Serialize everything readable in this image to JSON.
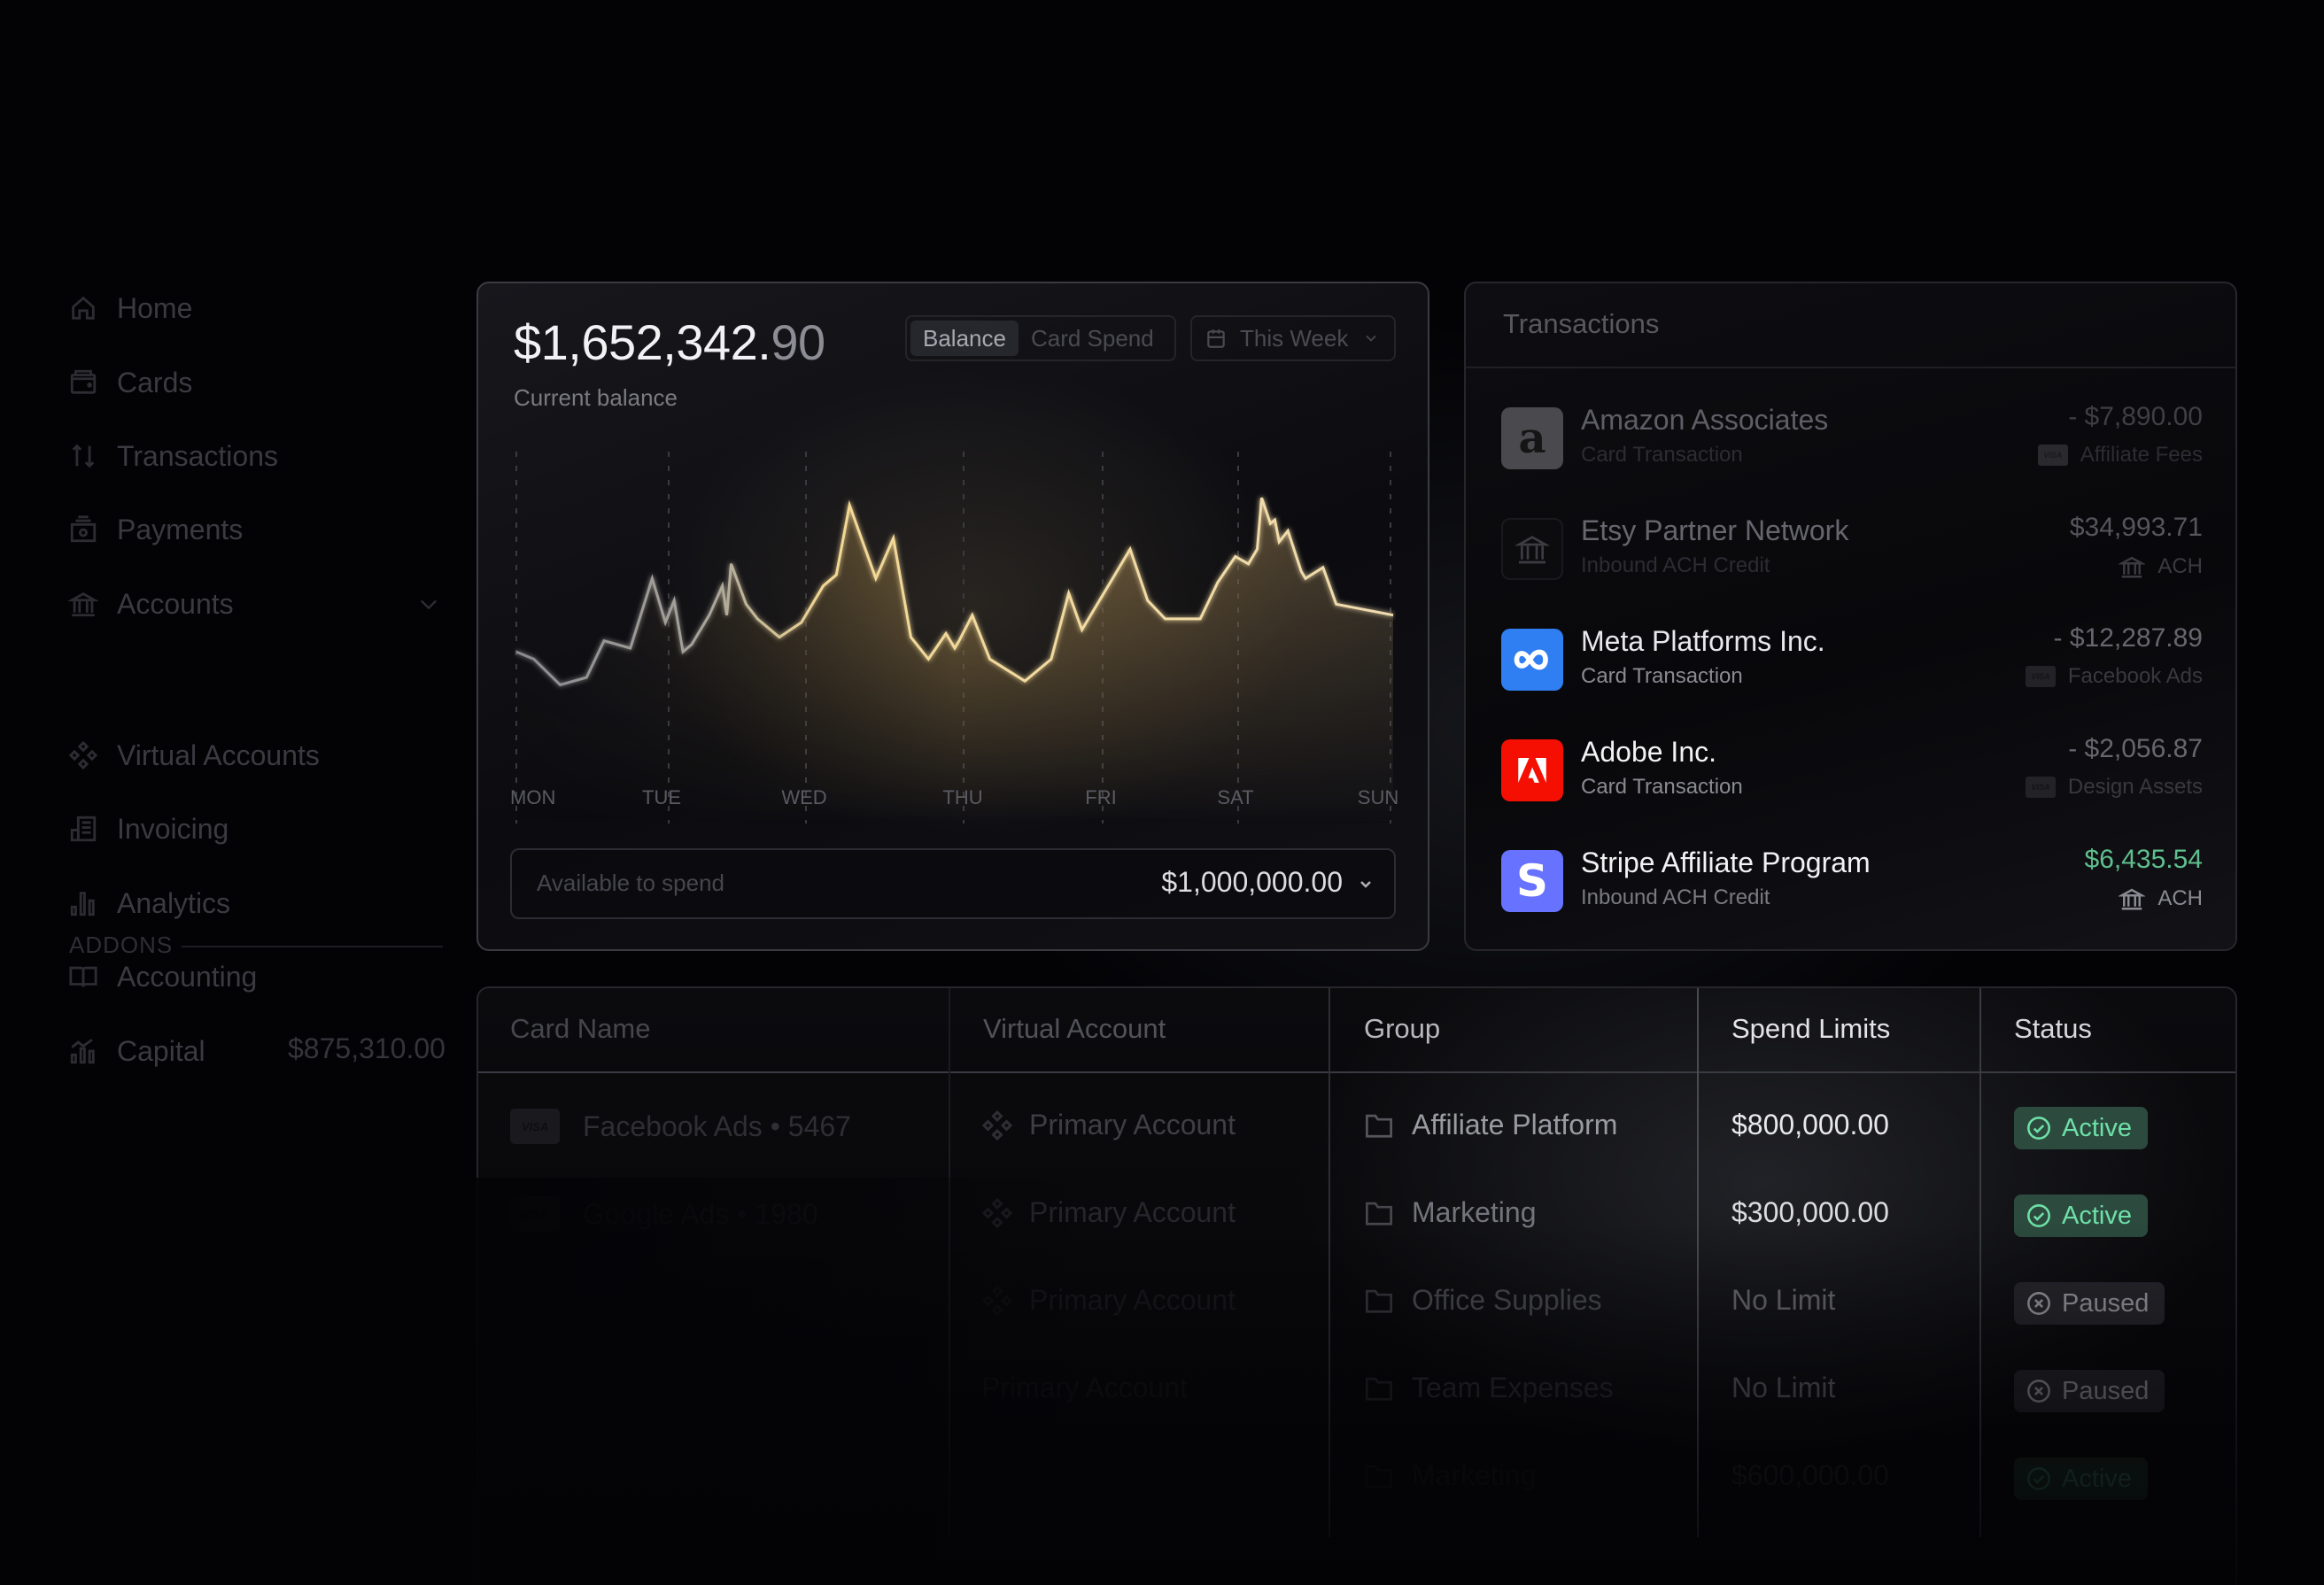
{
  "sidebar": {
    "items": [
      {
        "label": "Home",
        "icon": "home-icon"
      },
      {
        "label": "Cards",
        "icon": "wallet-icon"
      },
      {
        "label": "Transactions",
        "icon": "arrows-up-down-icon"
      },
      {
        "label": "Payments",
        "icon": "payments-icon"
      },
      {
        "label": "Accounts",
        "icon": "bank-icon",
        "has_chevron": true
      }
    ],
    "addons_label": "ADDONS",
    "addons": [
      {
        "label": "Virtual Accounts",
        "icon": "diamonds-icon"
      },
      {
        "label": "Invoicing",
        "icon": "invoice-icon"
      },
      {
        "label": "Analytics",
        "icon": "bar-chart-icon"
      },
      {
        "label": "Accounting",
        "icon": "book-icon"
      },
      {
        "label": "Capital",
        "icon": "capital-icon",
        "value": "$875,310.00"
      }
    ]
  },
  "balance": {
    "amount_main": "$1,652,342.",
    "amount_cents": "90",
    "label": "Current balance",
    "tabs": [
      "Balance",
      "Card Spend"
    ],
    "active_tab": "Balance",
    "range": "This Week",
    "available_label": "Available to spend",
    "available_value": "$1,000,000.00"
  },
  "chart_data": {
    "type": "area",
    "title": "Current balance",
    "categories": [
      "MON",
      "TUE",
      "WED",
      "THU",
      "FRI",
      "SAT",
      "SUN"
    ],
    "x": [
      0,
      0.02,
      0.05,
      0.08,
      0.1,
      0.13,
      0.155,
      0.17,
      0.18,
      0.19,
      0.2,
      0.22,
      0.235,
      0.24,
      0.245,
      0.262,
      0.275,
      0.3,
      0.325,
      0.35,
      0.365,
      0.38,
      0.41,
      0.43,
      0.45,
      0.47,
      0.49,
      0.5,
      0.505,
      0.52,
      0.54,
      0.58,
      0.61,
      0.63,
      0.645,
      0.7,
      0.72,
      0.74,
      0.78,
      0.8,
      0.82,
      0.835,
      0.845,
      0.85,
      0.86,
      0.865,
      0.87,
      0.88,
      0.895,
      0.9,
      0.92,
      0.935,
      1.0
    ],
    "values": [
      42,
      40,
      33,
      35,
      45,
      43,
      62,
      50,
      56,
      42,
      44,
      52,
      60,
      52,
      66,
      55,
      51,
      46,
      50,
      60,
      63,
      82,
      62,
      73,
      46,
      40,
      47,
      43,
      45,
      52,
      40,
      34,
      40,
      58,
      48,
      70,
      56,
      51,
      51,
      61,
      68,
      66,
      70,
      84,
      77,
      78,
      72,
      75,
      64,
      62,
      65,
      55,
      52
    ],
    "xlabel": "",
    "ylabel": "",
    "grid": "vertical dashed lines at each day",
    "ylim": [
      0,
      100
    ]
  },
  "transactions": {
    "title": "Transactions",
    "items": [
      {
        "name": "Amazon Associates",
        "type": "Card Transaction",
        "amount": "- $7,890.00",
        "tag": "Affiliate Fees",
        "tag_icon": "visa",
        "logo": "amazon",
        "amount_color": "#55555c"
      },
      {
        "name": "Etsy Partner Network",
        "type": "Inbound ACH Credit",
        "amount": "$34,993.71",
        "tag": "ACH",
        "tag_icon": "bank",
        "logo": "bank",
        "amount_color": "#5c5c63"
      },
      {
        "name": "Meta Platforms Inc.",
        "type": "Card Transaction",
        "amount": "- $12,287.89",
        "tag": "Facebook Ads",
        "tag_icon": "visa",
        "logo": "meta",
        "amount_color": "#7a7a82"
      },
      {
        "name": "Adobe Inc.",
        "type": "Card Transaction",
        "amount": "- $2,056.87",
        "tag": "Design Assets",
        "tag_icon": "visa",
        "logo": "adobe",
        "amount_color": "#7a7a82"
      },
      {
        "name": "Stripe Affiliate Program",
        "type": "Inbound ACH Credit",
        "amount": "$6,435.54",
        "tag": "ACH",
        "tag_icon": "bank",
        "logo": "stripe",
        "amount_color": "#5fbf8e"
      }
    ]
  },
  "cards_table": {
    "headers": [
      "Card Name",
      "Virtual Account",
      "Group",
      "Spend Limits",
      "Status"
    ],
    "rows": [
      {
        "card": "Facebook Ads • 5467",
        "account": "Primary Account",
        "group": "Affiliate Platform",
        "limit": "$800,000.00",
        "status": "Active"
      },
      {
        "card": "Google Ads • 1980",
        "account": "Primary Account",
        "group": "Marketing",
        "limit": "$300,000.00",
        "status": "Active"
      },
      {
        "card": "",
        "account": "Primary Account",
        "group": "Office Supplies",
        "limit": "No Limit",
        "status": "Paused"
      },
      {
        "card": "",
        "account": "Primary Account",
        "group": "Team Expenses",
        "limit": "No Limit",
        "status": "Paused"
      },
      {
        "card": "",
        "account": "",
        "group": "Marketing",
        "limit": "$600,000.00",
        "status": "Active"
      }
    ]
  },
  "colors": {
    "background": "#030306",
    "chart_line": "#f3d894",
    "chart_fill": "#8a7042",
    "active_badge_bg": "#2c4a3e",
    "active_badge_text": "#6ee0a8",
    "paused_badge_bg": "#2a2a30",
    "paused_badge_text": "#a0a0a8",
    "positive_amount": "#5fbf8e",
    "meta_blue": "#2f7ff2",
    "adobe_red": "#f40f02",
    "stripe_purple": "#6772ff"
  }
}
